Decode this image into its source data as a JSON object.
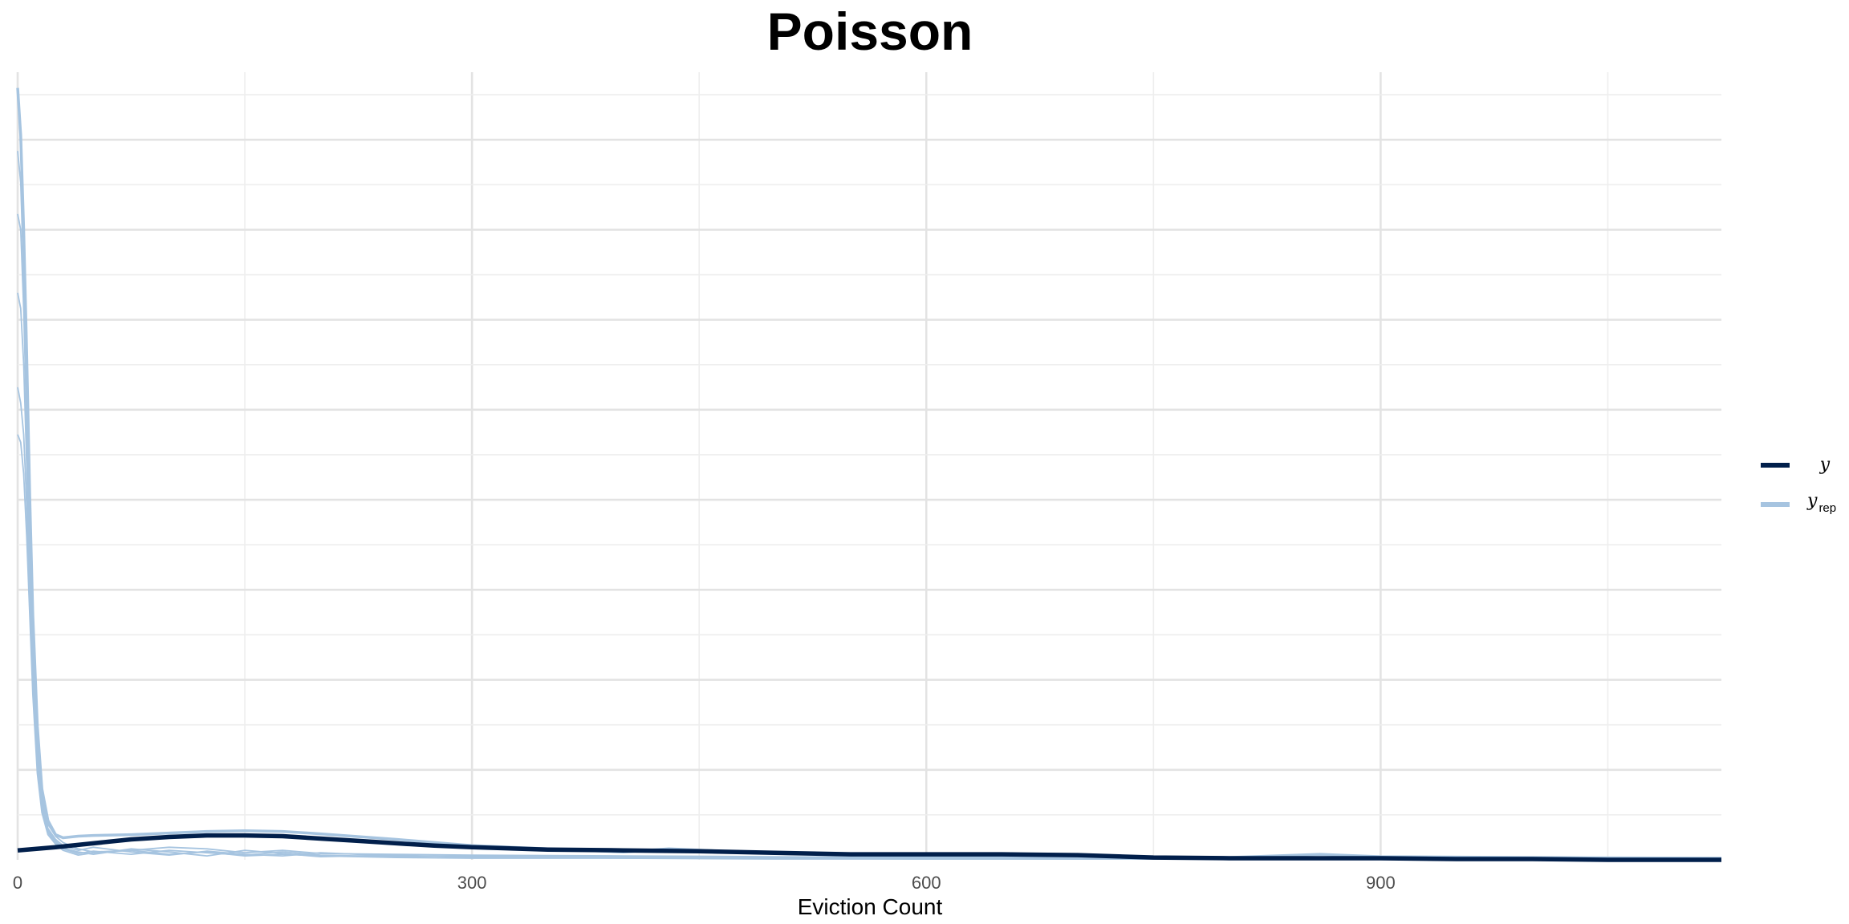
{
  "chart_data": {
    "type": "line",
    "title": "Poisson",
    "xlabel": "Eviction Count",
    "ylabel": "",
    "xlim": [
      0,
      1125
    ],
    "ylim": [
      0,
      1.0
    ],
    "x_ticks": [
      0,
      300,
      600,
      900
    ],
    "x_tick_labels": [
      "0",
      "300",
      "600",
      "900"
    ],
    "y_ticks": [],
    "grid": true,
    "legend_position": "right",
    "legend": [
      {
        "label": "y",
        "subscript": "",
        "color": "#011f4b"
      },
      {
        "label": "y",
        "subscript": "rep",
        "color": "#a6c4e0"
      }
    ],
    "series": [
      {
        "name": "y",
        "color": "#011f4b",
        "x": [
          0,
          25,
          50,
          75,
          100,
          125,
          150,
          175,
          200,
          225,
          250,
          275,
          300,
          350,
          400,
          450,
          500,
          550,
          600,
          650,
          700,
          750,
          800,
          850,
          900,
          950,
          1000,
          1050,
          1100,
          1125
        ],
        "y": [
          0.012,
          0.016,
          0.021,
          0.026,
          0.029,
          0.031,
          0.031,
          0.03,
          0.027,
          0.024,
          0.021,
          0.018,
          0.016,
          0.013,
          0.012,
          0.011,
          0.009,
          0.007,
          0.007,
          0.007,
          0.006,
          0.003,
          0.002,
          0.002,
          0.002,
          0.001,
          0.001,
          0.0,
          0.0,
          0.0
        ]
      },
      {
        "name": "y_rep",
        "color": "#a6c4e0",
        "draws": [
          {
            "x": [
              0,
              2,
              4,
              6,
              8,
              10,
              13,
              16,
              20,
              25,
              30,
              40,
              50,
              75,
              100,
              125,
              150,
              175,
              200,
              250,
              300,
              400,
              430,
              500,
              600,
              700,
              800,
              860,
              900,
              1000,
              1125
            ],
            "y": [
              0.98,
              0.92,
              0.8,
              0.64,
              0.46,
              0.31,
              0.17,
              0.09,
              0.05,
              0.032,
              0.028,
              0.03,
              0.031,
              0.032,
              0.034,
              0.036,
              0.037,
              0.036,
              0.033,
              0.026,
              0.018,
              0.01,
              0.014,
              0.008,
              0.005,
              0.004,
              0.003,
              0.007,
              0.004,
              0.003,
              0.002
            ]
          },
          {
            "x": [
              0,
              2,
              4,
              6,
              8,
              10,
              13,
              16,
              20,
              25,
              30,
              40,
              50,
              75,
              100,
              125,
              150,
              175,
              200,
              250,
              300,
              400,
              500,
              600,
              700,
              800,
              900,
              1000,
              1125
            ],
            "y": [
              0.9,
              0.86,
              0.74,
              0.58,
              0.41,
              0.27,
              0.15,
              0.08,
              0.045,
              0.03,
              0.022,
              0.014,
              0.01,
              0.012,
              0.016,
              0.014,
              0.009,
              0.012,
              0.008,
              0.007,
              0.006,
              0.005,
              0.004,
              0.003,
              0.003,
              0.002,
              0.004,
              0.003,
              0.002
            ]
          },
          {
            "x": [
              0,
              2,
              4,
              6,
              8,
              10,
              13,
              16,
              20,
              25,
              30,
              40,
              50,
              75,
              100,
              125,
              150,
              175,
              200,
              250,
              300,
              400,
              500,
              600,
              700,
              800,
              900,
              1000,
              1125
            ],
            "y": [
              0.82,
              0.8,
              0.7,
              0.55,
              0.39,
              0.26,
              0.14,
              0.075,
              0.04,
              0.026,
              0.018,
              0.012,
              0.016,
              0.01,
              0.006,
              0.011,
              0.007,
              0.005,
              0.009,
              0.005,
              0.004,
              0.004,
              0.003,
              0.002,
              0.002,
              0.002,
              0.003,
              0.002,
              0.001
            ]
          },
          {
            "x": [
              0,
              2,
              4,
              6,
              8,
              10,
              13,
              16,
              20,
              25,
              30,
              40,
              50,
              75,
              100,
              125,
              150,
              175,
              200,
              250,
              300,
              400,
              500,
              600,
              700,
              800,
              900,
              1000,
              1125
            ],
            "y": [
              0.72,
              0.7,
              0.63,
              0.5,
              0.36,
              0.24,
              0.13,
              0.07,
              0.038,
              0.024,
              0.015,
              0.01,
              0.007,
              0.014,
              0.01,
              0.005,
              0.012,
              0.008,
              0.004,
              0.006,
              0.003,
              0.003,
              0.002,
              0.003,
              0.001,
              0.002,
              0.002,
              0.001,
              0.001
            ]
          },
          {
            "x": [
              0,
              2,
              4,
              6,
              8,
              10,
              13,
              16,
              20,
              25,
              30,
              40,
              50,
              75,
              100,
              125,
              150,
              175,
              200,
              250,
              300,
              400,
              500,
              600,
              700,
              800,
              900,
              1000,
              1125
            ],
            "y": [
              0.6,
              0.58,
              0.54,
              0.45,
              0.33,
              0.22,
              0.12,
              0.065,
              0.035,
              0.022,
              0.014,
              0.008,
              0.011,
              0.007,
              0.012,
              0.009,
              0.006,
              0.01,
              0.006,
              0.004,
              0.005,
              0.002,
              0.002,
              0.001,
              0.001,
              0.001,
              0.002,
              0.001,
              0.001
            ]
          },
          {
            "x": [
              0,
              2,
              4,
              6,
              8,
              10,
              13,
              16,
              20,
              25,
              30,
              40,
              50,
              75,
              100,
              125,
              150,
              175,
              200,
              250,
              300,
              400,
              500,
              600,
              700,
              800,
              900,
              1000,
              1125
            ],
            "y": [
              0.54,
              0.53,
              0.49,
              0.41,
              0.31,
              0.21,
              0.11,
              0.06,
              0.032,
              0.02,
              0.012,
              0.006,
              0.009,
              0.012,
              0.007,
              0.01,
              0.005,
              0.007,
              0.005,
              0.003,
              0.002,
              0.002,
              0.001,
              0.001,
              0.001,
              0.001,
              0.001,
              0.001,
              0.0
            ]
          }
        ]
      }
    ]
  }
}
